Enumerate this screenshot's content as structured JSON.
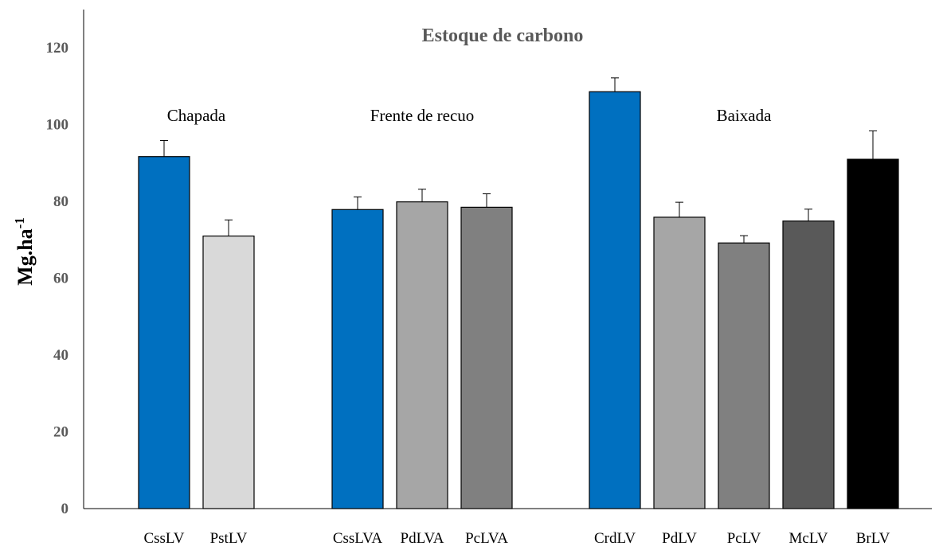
{
  "chart_data": {
    "type": "bar",
    "title": "Estoque de carbono",
    "ylabel_main": "Mg.ha",
    "ylabel_sup": "-1",
    "ylim": [
      0,
      130
    ],
    "yticks": [
      0,
      20,
      40,
      60,
      80,
      100,
      120
    ],
    "grid": false,
    "groups": [
      {
        "label": "Chapada",
        "categories": [
          "CssLV",
          "PstLV"
        ]
      },
      {
        "label": "Frente de recuo",
        "categories": [
          "CssLVA",
          "PdLVA",
          "PcLVA"
        ]
      },
      {
        "label": "Baixada",
        "categories": [
          "CrdLV",
          "PdLV",
          "PcLV",
          "McLV",
          "BrLV"
        ]
      }
    ],
    "categories": [
      "CssLV",
      "PstLV",
      "CssLVA",
      "PdLVA",
      "PcLVA",
      "CrdLV",
      "PdLV",
      "PcLV",
      "McLV",
      "BrLV"
    ],
    "values": [
      91.7,
      71.0,
      77.9,
      79.9,
      78.5,
      108.6,
      75.9,
      69.2,
      74.9,
      91.0
    ],
    "errors": [
      4.2,
      4.2,
      3.3,
      3.3,
      3.5,
      3.6,
      3.9,
      1.9,
      3.1,
      7.4
    ],
    "colors": [
      "#0070C0",
      "#D9D9D9",
      "#0070C0",
      "#A6A6A6",
      "#808080",
      "#0070C0",
      "#A6A6A6",
      "#808080",
      "#595959",
      "#000000"
    ]
  }
}
